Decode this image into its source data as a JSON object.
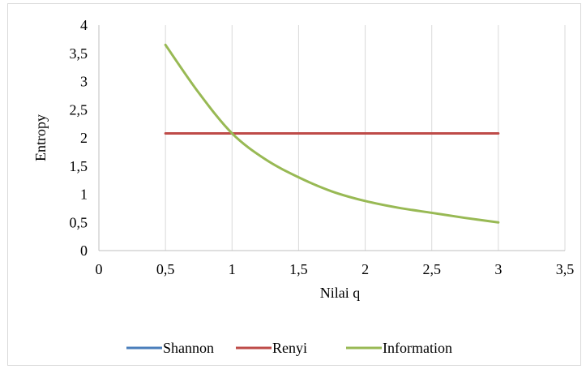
{
  "chart_data": {
    "type": "line",
    "title": "",
    "xlabel": "Nilai  q",
    "ylabel": "Entropy",
    "xlim": [
      0,
      3.5
    ],
    "ylim": [
      0,
      4
    ],
    "x_ticks": [
      0,
      0.5,
      1,
      1.5,
      2,
      2.5,
      3,
      3.5
    ],
    "x_tick_labels": [
      "0",
      "0,5",
      "1",
      "1,5",
      "2",
      "2,5",
      "3",
      "3,5"
    ],
    "y_ticks": [
      0,
      0.5,
      1,
      1.5,
      2,
      2.5,
      3,
      3.5,
      4
    ],
    "y_tick_labels": [
      "0",
      "0,5",
      "1",
      "1,5",
      "2",
      "2,5",
      "3",
      "3,5",
      "4"
    ],
    "grid": "vertical",
    "legend_position": "bottom",
    "series": [
      {
        "name": "Shannon",
        "color": "#4a7ebb",
        "x": [
          1
        ],
        "y": [
          2.08
        ]
      },
      {
        "name": "Renyi",
        "color": "#be4b48",
        "x": [
          0.5,
          3
        ],
        "y": [
          2.08,
          2.08
        ]
      },
      {
        "name": "Information",
        "color": "#98b954",
        "x": [
          0.5,
          0.75,
          1,
          1.25,
          1.5,
          1.75,
          2,
          2.25,
          2.5,
          2.75,
          3
        ],
        "y": [
          3.65,
          2.8,
          2.08,
          1.62,
          1.3,
          1.05,
          0.88,
          0.76,
          0.67,
          0.58,
          0.5
        ]
      }
    ]
  }
}
